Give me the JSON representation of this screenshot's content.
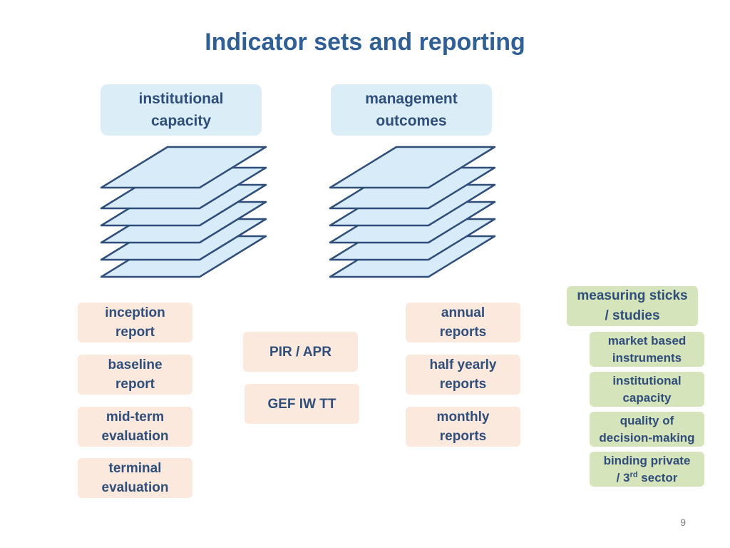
{
  "slide": {
    "title": "Indicator sets and reporting",
    "page_number": "9"
  },
  "headers": {
    "left": "institutional\ncapacity",
    "right": "management\noutcomes"
  },
  "reports_left": [
    "inception\nreport",
    "baseline\nreport",
    "mid-term\nevaluation",
    "terminal\nevaluation"
  ],
  "reports_middle": [
    "PIR / APR",
    "GEF IW TT"
  ],
  "reports_right": [
    "annual\nreports",
    "half yearly\nreports",
    "monthly\nreports"
  ],
  "measuring": {
    "title": "measuring sticks\n/ studies",
    "items": [
      "market based\ninstruments",
      "institutional\ncapacity",
      "quality of\ndecision-making"
    ],
    "binding_line1": "binding private",
    "binding_line2_prefix": "/ 3",
    "binding_sup": "rd",
    "binding_line2_suffix": " sector"
  },
  "colors": {
    "title": "#2f5f94",
    "text": "#2f4e7a",
    "header_fill": "#dbeef8",
    "report_fill": "#fce9dd",
    "measure_fill": "#d6e4bc",
    "sheet_fill": "#d7ebf8",
    "sheet_stroke": "#2f4e7a"
  }
}
